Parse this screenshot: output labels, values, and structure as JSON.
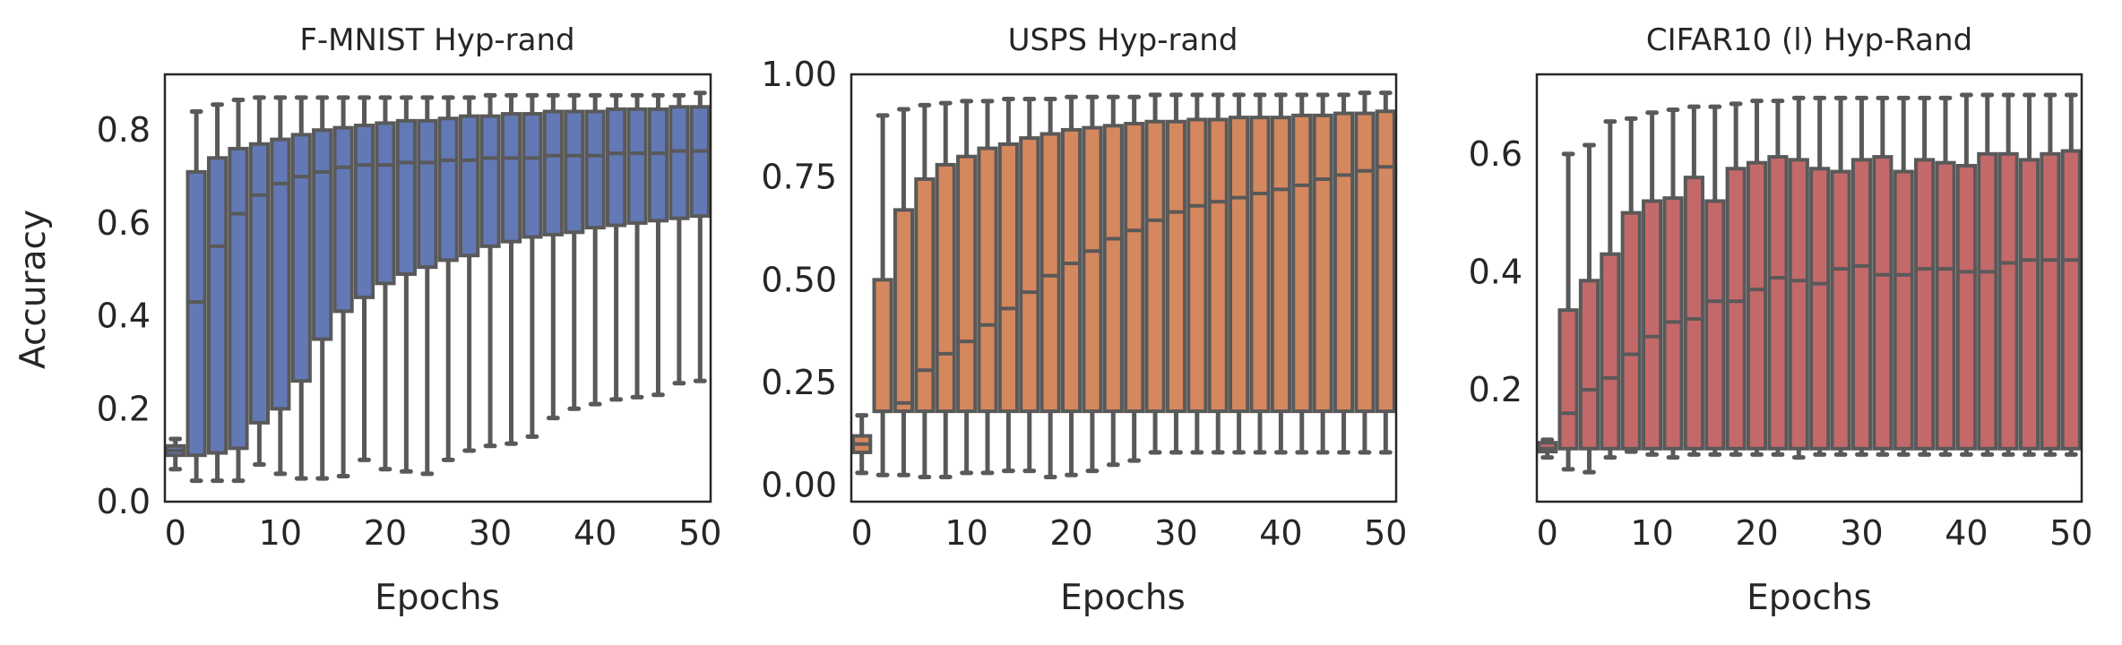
{
  "figure": {
    "shared_ylabel": "Accuracy",
    "box_edge_color": "#595959"
  },
  "chart_data": [
    {
      "type": "box",
      "title": "F-MNIST Hyp-rand",
      "xlabel": "Epochs",
      "ylabel": "Accuracy",
      "color": "#6279b5",
      "xlim": [
        -1,
        51
      ],
      "ylim": [
        0.0,
        0.92
      ],
      "xticks": [
        0,
        10,
        20,
        30,
        40,
        50
      ],
      "yticks": [
        0.0,
        0.2,
        0.4,
        0.6,
        0.8
      ],
      "ytick_labels": [
        "0.0",
        "0.2",
        "0.4",
        "0.6",
        "0.8"
      ],
      "grid": false,
      "x": [
        0,
        2,
        4,
        6,
        8,
        10,
        12,
        14,
        16,
        18,
        20,
        22,
        24,
        26,
        28,
        30,
        32,
        34,
        36,
        38,
        40,
        42,
        44,
        46,
        48,
        50
      ],
      "whisker_low": [
        0.07,
        0.045,
        0.045,
        0.045,
        0.08,
        0.06,
        0.05,
        0.05,
        0.055,
        0.09,
        0.07,
        0.065,
        0.06,
        0.09,
        0.11,
        0.12,
        0.125,
        0.14,
        0.18,
        0.2,
        0.21,
        0.22,
        0.225,
        0.23,
        0.255,
        0.26
      ],
      "q1": [
        0.1,
        0.1,
        0.105,
        0.115,
        0.17,
        0.2,
        0.26,
        0.35,
        0.41,
        0.44,
        0.47,
        0.49,
        0.505,
        0.52,
        0.53,
        0.55,
        0.56,
        0.57,
        0.575,
        0.58,
        0.59,
        0.595,
        0.6,
        0.605,
        0.61,
        0.615
      ],
      "median": [
        0.11,
        0.43,
        0.55,
        0.62,
        0.66,
        0.685,
        0.7,
        0.71,
        0.72,
        0.725,
        0.725,
        0.73,
        0.73,
        0.735,
        0.735,
        0.74,
        0.74,
        0.74,
        0.745,
        0.745,
        0.745,
        0.75,
        0.75,
        0.75,
        0.755,
        0.755
      ],
      "q3": [
        0.12,
        0.71,
        0.74,
        0.76,
        0.77,
        0.78,
        0.79,
        0.8,
        0.805,
        0.81,
        0.815,
        0.82,
        0.82,
        0.825,
        0.83,
        0.83,
        0.835,
        0.835,
        0.84,
        0.84,
        0.84,
        0.845,
        0.845,
        0.845,
        0.85,
        0.85
      ],
      "whisker_high": [
        0.135,
        0.84,
        0.855,
        0.865,
        0.87,
        0.87,
        0.87,
        0.87,
        0.87,
        0.87,
        0.87,
        0.87,
        0.87,
        0.87,
        0.87,
        0.875,
        0.875,
        0.875,
        0.875,
        0.875,
        0.875,
        0.875,
        0.875,
        0.875,
        0.875,
        0.88
      ]
    },
    {
      "type": "box",
      "title": "USPS Hyp-rand",
      "xlabel": "Epochs",
      "ylabel": "",
      "color": "#d5875e",
      "xlim": [
        -1,
        51
      ],
      "ylim": [
        -0.04,
        1.0
      ],
      "xticks": [
        0,
        10,
        20,
        30,
        40,
        50
      ],
      "yticks": [
        0.0,
        0.25,
        0.5,
        0.75,
        1.0
      ],
      "ytick_labels": [
        "0.00",
        "0.25",
        "0.50",
        "0.75",
        "1.00"
      ],
      "grid": false,
      "x": [
        0,
        2,
        4,
        6,
        8,
        10,
        12,
        14,
        16,
        18,
        20,
        22,
        24,
        26,
        28,
        30,
        32,
        34,
        36,
        38,
        40,
        42,
        44,
        46,
        48,
        50
      ],
      "whisker_low": [
        0.03,
        0.025,
        0.025,
        0.02,
        0.02,
        0.03,
        0.03,
        0.035,
        0.035,
        0.02,
        0.025,
        0.035,
        0.05,
        0.06,
        0.08,
        0.08,
        0.08,
        0.08,
        0.08,
        0.08,
        0.08,
        0.08,
        0.08,
        0.08,
        0.08,
        0.08
      ],
      "q1": [
        0.08,
        0.18,
        0.18,
        0.18,
        0.18,
        0.18,
        0.18,
        0.18,
        0.18,
        0.18,
        0.18,
        0.18,
        0.18,
        0.18,
        0.18,
        0.18,
        0.18,
        0.18,
        0.18,
        0.18,
        0.18,
        0.18,
        0.18,
        0.18,
        0.18,
        0.18
      ],
      "median": [
        0.1,
        0.18,
        0.2,
        0.28,
        0.32,
        0.35,
        0.39,
        0.43,
        0.47,
        0.51,
        0.54,
        0.57,
        0.6,
        0.62,
        0.645,
        0.665,
        0.68,
        0.69,
        0.7,
        0.71,
        0.72,
        0.73,
        0.745,
        0.755,
        0.765,
        0.775
      ],
      "q3": [
        0.12,
        0.5,
        0.67,
        0.745,
        0.78,
        0.8,
        0.82,
        0.83,
        0.845,
        0.855,
        0.865,
        0.87,
        0.875,
        0.88,
        0.885,
        0.885,
        0.89,
        0.89,
        0.895,
        0.895,
        0.895,
        0.9,
        0.9,
        0.905,
        0.905,
        0.91
      ],
      "whisker_high": [
        0.17,
        0.9,
        0.915,
        0.925,
        0.93,
        0.935,
        0.935,
        0.94,
        0.94,
        0.94,
        0.945,
        0.945,
        0.945,
        0.945,
        0.95,
        0.95,
        0.95,
        0.95,
        0.95,
        0.95,
        0.95,
        0.95,
        0.95,
        0.95,
        0.955,
        0.955
      ]
    },
    {
      "type": "box",
      "title": "CIFAR10 (l) Hyp-Rand",
      "xlabel": "Epochs",
      "ylabel": "",
      "color": "#c4696a",
      "xlim": [
        -1,
        51
      ],
      "ylim": [
        0.01,
        0.735
      ],
      "xticks": [
        0,
        10,
        20,
        30,
        40,
        50
      ],
      "yticks": [
        0.2,
        0.4,
        0.6
      ],
      "ytick_labels": [
        "0.2",
        "0.4",
        "0.6"
      ],
      "grid": false,
      "x": [
        0,
        2,
        4,
        6,
        8,
        10,
        12,
        14,
        16,
        18,
        20,
        22,
        24,
        26,
        28,
        30,
        32,
        34,
        36,
        38,
        40,
        42,
        44,
        46,
        48,
        50
      ],
      "whisker_low": [
        0.085,
        0.065,
        0.06,
        0.085,
        0.095,
        0.09,
        0.085,
        0.09,
        0.09,
        0.09,
        0.09,
        0.09,
        0.085,
        0.09,
        0.09,
        0.09,
        0.09,
        0.09,
        0.09,
        0.09,
        0.09,
        0.09,
        0.09,
        0.09,
        0.09,
        0.09
      ],
      "q1": [
        0.095,
        0.1,
        0.1,
        0.1,
        0.1,
        0.1,
        0.1,
        0.1,
        0.1,
        0.1,
        0.1,
        0.1,
        0.1,
        0.1,
        0.1,
        0.1,
        0.1,
        0.1,
        0.1,
        0.1,
        0.1,
        0.1,
        0.1,
        0.1,
        0.1,
        0.1
      ],
      "median": [
        0.1,
        0.16,
        0.2,
        0.22,
        0.26,
        0.29,
        0.315,
        0.32,
        0.35,
        0.35,
        0.37,
        0.39,
        0.385,
        0.38,
        0.405,
        0.41,
        0.395,
        0.395,
        0.405,
        0.405,
        0.4,
        0.4,
        0.415,
        0.42,
        0.42,
        0.42
      ],
      "q3": [
        0.11,
        0.335,
        0.385,
        0.43,
        0.5,
        0.52,
        0.525,
        0.56,
        0.52,
        0.575,
        0.585,
        0.595,
        0.59,
        0.575,
        0.57,
        0.59,
        0.595,
        0.57,
        0.59,
        0.585,
        0.58,
        0.6,
        0.6,
        0.59,
        0.6,
        0.605
      ],
      "whisker_high": [
        0.115,
        0.6,
        0.615,
        0.655,
        0.66,
        0.67,
        0.675,
        0.68,
        0.68,
        0.685,
        0.69,
        0.69,
        0.695,
        0.695,
        0.695,
        0.695,
        0.695,
        0.695,
        0.695,
        0.695,
        0.7,
        0.7,
        0.7,
        0.7,
        0.7,
        0.7
      ]
    }
  ]
}
